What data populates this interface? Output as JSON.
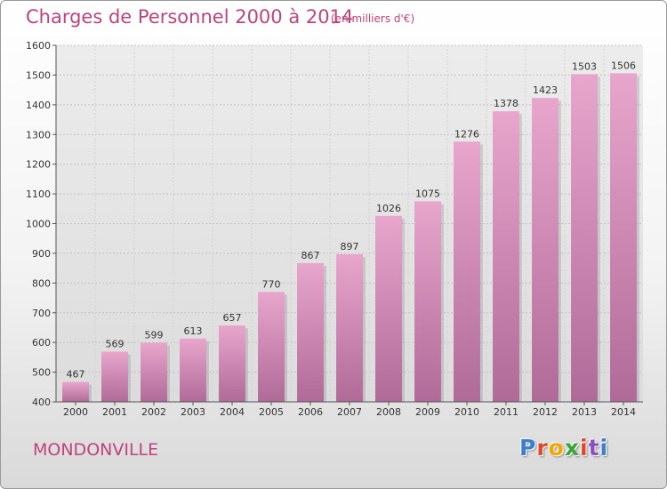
{
  "header": {
    "title": "Charges de Personnel 2000 à 2014",
    "subtitle": "(en milliers d'€)"
  },
  "footer": {
    "commune": "MONDONVILLE",
    "logo_letters": [
      "P",
      "r",
      "o",
      "x",
      "i",
      "t",
      "i"
    ]
  },
  "colors": {
    "accent": "#c0437a",
    "bar_top": "#e8a6cc",
    "bar_bottom": "#b06a98"
  },
  "chart_data": {
    "type": "bar",
    "title": "Charges de Personnel 2000 à 2014",
    "subtitle": "(en milliers d'€)",
    "categories": [
      "2000",
      "2001",
      "2002",
      "2003",
      "2004",
      "2005",
      "2006",
      "2007",
      "2008",
      "2009",
      "2010",
      "2011",
      "2012",
      "2013",
      "2014"
    ],
    "values": [
      467,
      569,
      599,
      613,
      657,
      770,
      867,
      897,
      1026,
      1075,
      1276,
      1378,
      1423,
      1503,
      1506
    ],
    "ylim": [
      400,
      1600
    ],
    "yticks": [
      400,
      500,
      600,
      700,
      800,
      900,
      1000,
      1100,
      1200,
      1300,
      1400,
      1500,
      1600
    ],
    "grid": true,
    "data_labels": true
  }
}
